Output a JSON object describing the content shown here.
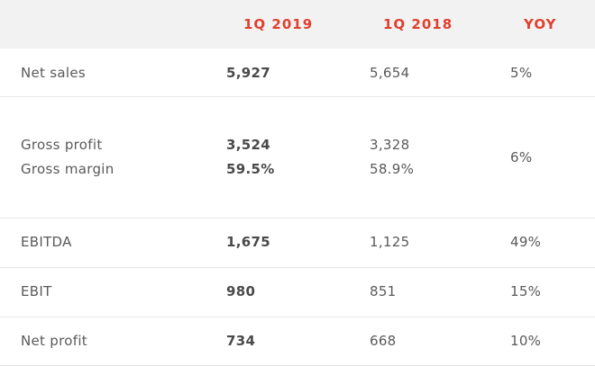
{
  "header": {
    "col1": "1Q 2019",
    "col2": "1Q 2018",
    "col3": "YOY"
  },
  "rows": [
    {
      "label": "Net sales",
      "q2019": "5,927",
      "q2018": "5,654",
      "yoy": "5%"
    },
    {
      "label": "Gross profit",
      "label2": "Gross margin",
      "q2019": "3,524",
      "q2019b": "59.5%",
      "q2018": "3,328",
      "q2018b": "58.9%",
      "yoy": "6%"
    },
    {
      "label": "EBITDA",
      "q2019": "1,675",
      "q2018": "1,125",
      "yoy": "49%"
    },
    {
      "label": "EBIT",
      "q2019": "980",
      "q2018": "851",
      "yoy": "15%"
    },
    {
      "label": "Net profit",
      "q2019": "734",
      "q2018": "668",
      "yoy": "10%"
    }
  ]
}
